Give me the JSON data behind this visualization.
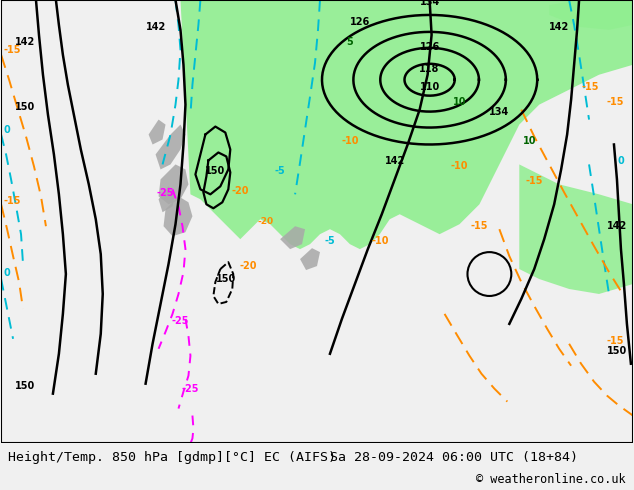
{
  "title_left": "Height/Temp. 850 hPa [gdmp][°C] EC (AIFS)",
  "title_right": "Sa 28-09-2024 06:00 UTC (18+84)",
  "copyright": "© weatheronline.co.uk",
  "figsize": [
    6.34,
    4.9
  ],
  "dpi": 100,
  "bg_color": "#e8e8e8",
  "map_bg": "#dcdcdc",
  "green_light": "#90ee90",
  "green_mid": "#4caf50",
  "gray_rock": "#a8a8a8",
  "cyan": "#00bcd4",
  "orange": "#ff8c00",
  "magenta": "#ff00ff",
  "black": "#000000",
  "red_contour": "#cc0000",
  "font_size_bottom": 9.5,
  "font_size_copyright": 8.5,
  "contour_lw": 1.8,
  "temp_lw": 1.4
}
